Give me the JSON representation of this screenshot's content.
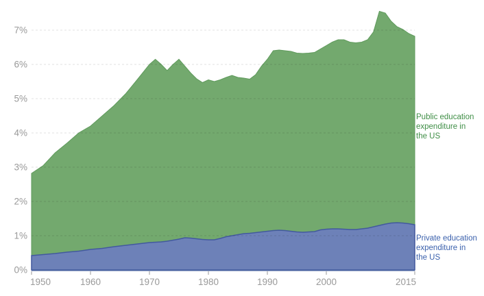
{
  "chart": {
    "background_color": "#ffffff",
    "series_labels": {
      "public": "Public education\nexpenditure in\nthe US",
      "private": "Private education\nexpenditure in\nthe US"
    }
  },
  "chart_data": {
    "type": "area",
    "stacked": true,
    "title": "",
    "xlabel": "",
    "ylabel": "",
    "x": [
      1950,
      1952,
      1954,
      1956,
      1958,
      1960,
      1962,
      1964,
      1966,
      1968,
      1970,
      1971,
      1972,
      1973,
      1974,
      1975,
      1976,
      1977,
      1978,
      1979,
      1980,
      1981,
      1982,
      1983,
      1984,
      1985,
      1986,
      1987,
      1988,
      1989,
      1990,
      1991,
      1992,
      1993,
      1994,
      1995,
      1996,
      1997,
      1998,
      1999,
      2000,
      2001,
      2002,
      2003,
      2004,
      2005,
      2006,
      2007,
      2008,
      2009,
      2010,
      2011,
      2012,
      2013,
      2014,
      2015
    ],
    "series": [
      {
        "name": "Private education expenditure in the US",
        "unit": "% of GDP",
        "fill": "#6d81b8",
        "line": "#42599e",
        "label_color": "#3a60ac",
        "values": [
          0.42,
          0.45,
          0.48,
          0.52,
          0.55,
          0.6,
          0.63,
          0.68,
          0.72,
          0.76,
          0.8,
          0.81,
          0.82,
          0.84,
          0.87,
          0.9,
          0.94,
          0.93,
          0.91,
          0.89,
          0.88,
          0.88,
          0.92,
          0.97,
          1.0,
          1.03,
          1.06,
          1.07,
          1.09,
          1.11,
          1.13,
          1.15,
          1.16,
          1.15,
          1.13,
          1.11,
          1.1,
          1.11,
          1.12,
          1.17,
          1.19,
          1.2,
          1.2,
          1.19,
          1.18,
          1.18,
          1.2,
          1.22,
          1.26,
          1.3,
          1.34,
          1.37,
          1.38,
          1.37,
          1.35,
          1.32
        ]
      },
      {
        "name": "Public education expenditure in the US",
        "unit": "% of GDP",
        "fill": "#73a96e",
        "line": "#5f9a5c",
        "label_color": "#3f8e46",
        "values": [
          2.4,
          2.6,
          2.94,
          3.18,
          3.45,
          3.6,
          3.87,
          4.12,
          4.43,
          4.81,
          5.2,
          5.34,
          5.18,
          4.98,
          5.13,
          5.25,
          5.01,
          4.82,
          4.67,
          4.58,
          4.67,
          4.62,
          4.63,
          4.65,
          4.68,
          4.59,
          4.54,
          4.5,
          4.61,
          4.84,
          5.02,
          5.25,
          5.26,
          5.25,
          5.25,
          5.22,
          5.22,
          5.22,
          5.23,
          5.28,
          5.36,
          5.45,
          5.52,
          5.53,
          5.47,
          5.45,
          5.45,
          5.5,
          5.69,
          6.25,
          6.16,
          5.89,
          5.72,
          5.65,
          5.55,
          5.5
        ]
      }
    ],
    "xlim": [
      1950,
      2015
    ],
    "ylim": [
      0,
      7.9
    ],
    "yticks": {
      "values": [
        0,
        1,
        2,
        3,
        4,
        5,
        6,
        7
      ],
      "labels": [
        "0%",
        "1%",
        "2%",
        "3%",
        "4%",
        "5%",
        "6%",
        "7%"
      ]
    },
    "xticks": {
      "values": [
        1950,
        1960,
        1970,
        1980,
        1990,
        2000,
        2015
      ],
      "labels": [
        "1950",
        "1960",
        "1970",
        "1980",
        "1990",
        "2000",
        "2015"
      ]
    },
    "grid": "horizontal-dashed-overlay",
    "legend_position": "right-of-plot-series-end-labels",
    "axis": {
      "tick_label_color": "#999999",
      "gridline_color": "rgba(0,0,0,0.12)",
      "tick_mark_color": "#bbbbbb",
      "domain_line_color": "#47619f"
    }
  }
}
